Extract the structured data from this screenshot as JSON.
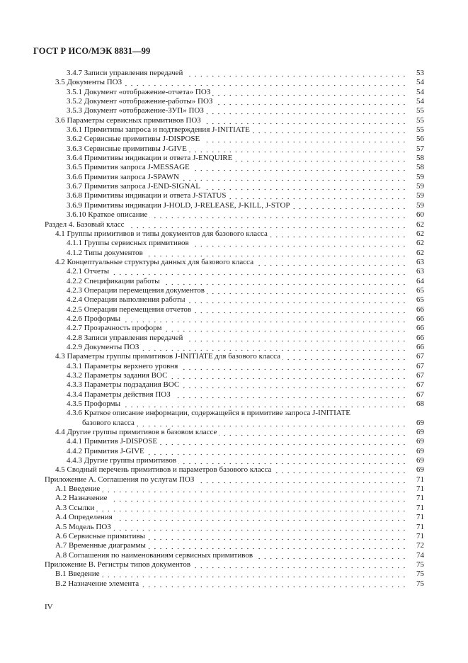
{
  "header": {
    "title": "ГОСТ Р ИСО/МЭК 8831—99"
  },
  "toc": [
    {
      "level": 2,
      "text": "3.4.7 Записи управления передачей",
      "page": "53"
    },
    {
      "level": 1,
      "text": "3.5 Документы ПОЗ",
      "page": "54"
    },
    {
      "level": 2,
      "text": "3.5.1 Документ «отображение-отчета» ПОЗ",
      "page": "54"
    },
    {
      "level": 2,
      "text": "3.5.2 Документ «отображение-работы» ПОЗ",
      "page": "54"
    },
    {
      "level": 2,
      "text": "3.5.3 Документ «отображение-ЗУП» ПОЗ",
      "page": "55"
    },
    {
      "level": 1,
      "text": "3.6 Параметры сервисных примитивов ПОЗ",
      "page": "55"
    },
    {
      "level": 2,
      "text": "3.6.1 Примитивы запроса и подтверждения J-INITIATE",
      "page": "55"
    },
    {
      "level": 2,
      "text": "3.6.2 Сервисные примитивы J-DISPOSE",
      "page": "56"
    },
    {
      "level": 2,
      "text": "3.6.3 Сервисные примитивы J-GIVE",
      "page": "57"
    },
    {
      "level": 2,
      "text": "3.6.4 Примитивы индикации и ответа J-ENQUIRE",
      "page": "58"
    },
    {
      "level": 2,
      "text": "3.6.5 Примитив запроса J-MESSAGE",
      "page": "58"
    },
    {
      "level": 2,
      "text": "3.6.6 Примитив запроса J-SPAWN",
      "page": "59"
    },
    {
      "level": 2,
      "text": "3.6.7 Примитив запроса J-END-SIGNAL",
      "page": "59"
    },
    {
      "level": 2,
      "text": "3.6.8 Примитивы индикации и ответа J-STATUS",
      "page": "59"
    },
    {
      "level": 2,
      "text": "3.6.9 Примитивы индикации J-HOLD, J-RELEASE, J-KILL, J-STOP",
      "page": "59"
    },
    {
      "level": 2,
      "text": "3.6.10 Краткое описание",
      "page": "60"
    },
    {
      "level": 0,
      "text": "Раздел 4. Базовый класс",
      "page": "62"
    },
    {
      "level": 1,
      "text": "4.1 Группы примитивов и типы документов для базового класса",
      "page": "62"
    },
    {
      "level": 2,
      "text": "4.1.1 Группы сервисных примитивов",
      "page": "62"
    },
    {
      "level": 2,
      "text": "4.1.2 Типы документов",
      "page": "62"
    },
    {
      "level": 1,
      "text": "4.2 Концептуальные структуры данных для базового класса",
      "page": "63"
    },
    {
      "level": 2,
      "text": "4.2.1 Отчеты",
      "page": "63"
    },
    {
      "level": 2,
      "text": "4.2.2 Спецификации работы",
      "page": "64"
    },
    {
      "level": 2,
      "text": "4.2.3 Операции перемещения документов",
      "page": "65"
    },
    {
      "level": 2,
      "text": "4.2.4 Операции выполнения работы",
      "page": "65"
    },
    {
      "level": 2,
      "text": "4.2.5 Операции перемещения отчетов",
      "page": "66"
    },
    {
      "level": 2,
      "text": "4.2.6 Проформы",
      "page": "66"
    },
    {
      "level": 2,
      "text": "4.2.7 Прозрачность проформ",
      "page": "66"
    },
    {
      "level": 2,
      "text": "4.2.8 Записи управления передачей",
      "page": "66"
    },
    {
      "level": 2,
      "text": "4.2.9 Документы ПОЗ",
      "page": "66"
    },
    {
      "level": 1,
      "text": "4.3 Параметры группы примитивов J-INITIATE для базового класса",
      "page": "67"
    },
    {
      "level": 2,
      "text": "4.3.1 Параметры верхнего уровня",
      "page": "67"
    },
    {
      "level": 2,
      "text": "4.3.2 Параметры задания ВОС",
      "page": "67"
    },
    {
      "level": 2,
      "text": "4.3.3 Параметры подзадания ВОС",
      "page": "67"
    },
    {
      "level": 2,
      "text": "4.3.4 Параметры действия ПОЗ",
      "page": "67"
    },
    {
      "level": 2,
      "text": "4.3.5 Проформы",
      "page": "68"
    },
    {
      "level": 2,
      "text": "4.3.6 Краткое описание информации, содержащейся в примитиве запроса J-INITIATE",
      "page": ""
    },
    {
      "level": 3,
      "text": "базового класса",
      "page": "69"
    },
    {
      "level": 1,
      "text": "4.4 Другие группы примитивов в базовом классе",
      "page": "69"
    },
    {
      "level": 2,
      "text": "4.4.1 Примитив J-DISPOSE",
      "page": "69"
    },
    {
      "level": 2,
      "text": "4.4.2 Примитив J-GIVE",
      "page": "69"
    },
    {
      "level": 2,
      "text": "4.4.3 Другие группы примитивов",
      "page": "69"
    },
    {
      "level": 1,
      "text": "4.5 Сводный перечень примитивов и параметров базового класса",
      "page": "69"
    },
    {
      "level": 0,
      "text": "Приложение А. Соглашения по услугам ПОЗ",
      "page": "71"
    },
    {
      "level": 1,
      "text": "А.1 Введение",
      "page": "71"
    },
    {
      "level": 1,
      "text": "А.2 Назначение",
      "page": "71"
    },
    {
      "level": 1,
      "text": "А.3 Ссылки",
      "page": "71"
    },
    {
      "level": 1,
      "text": "А.4 Определения",
      "page": "71"
    },
    {
      "level": 1,
      "text": "А.5 Модель ПОЗ",
      "page": "71"
    },
    {
      "level": 1,
      "text": "А.6 Сервисные примитивы",
      "page": "71"
    },
    {
      "level": 1,
      "text": "А.7 Временные диаграммы",
      "page": "72"
    },
    {
      "level": 1,
      "text": "А.8 Соглашения по наименованиям сервисных примитивов",
      "page": "74"
    },
    {
      "level": 0,
      "text": "Приложение В. Регистры типов документов",
      "page": "75"
    },
    {
      "level": 1,
      "text": "В.1 Введение",
      "page": "75"
    },
    {
      "level": 1,
      "text": "В.2 Назначение элемента",
      "page": "75"
    }
  ],
  "footer": {
    "page_number": "IV"
  }
}
